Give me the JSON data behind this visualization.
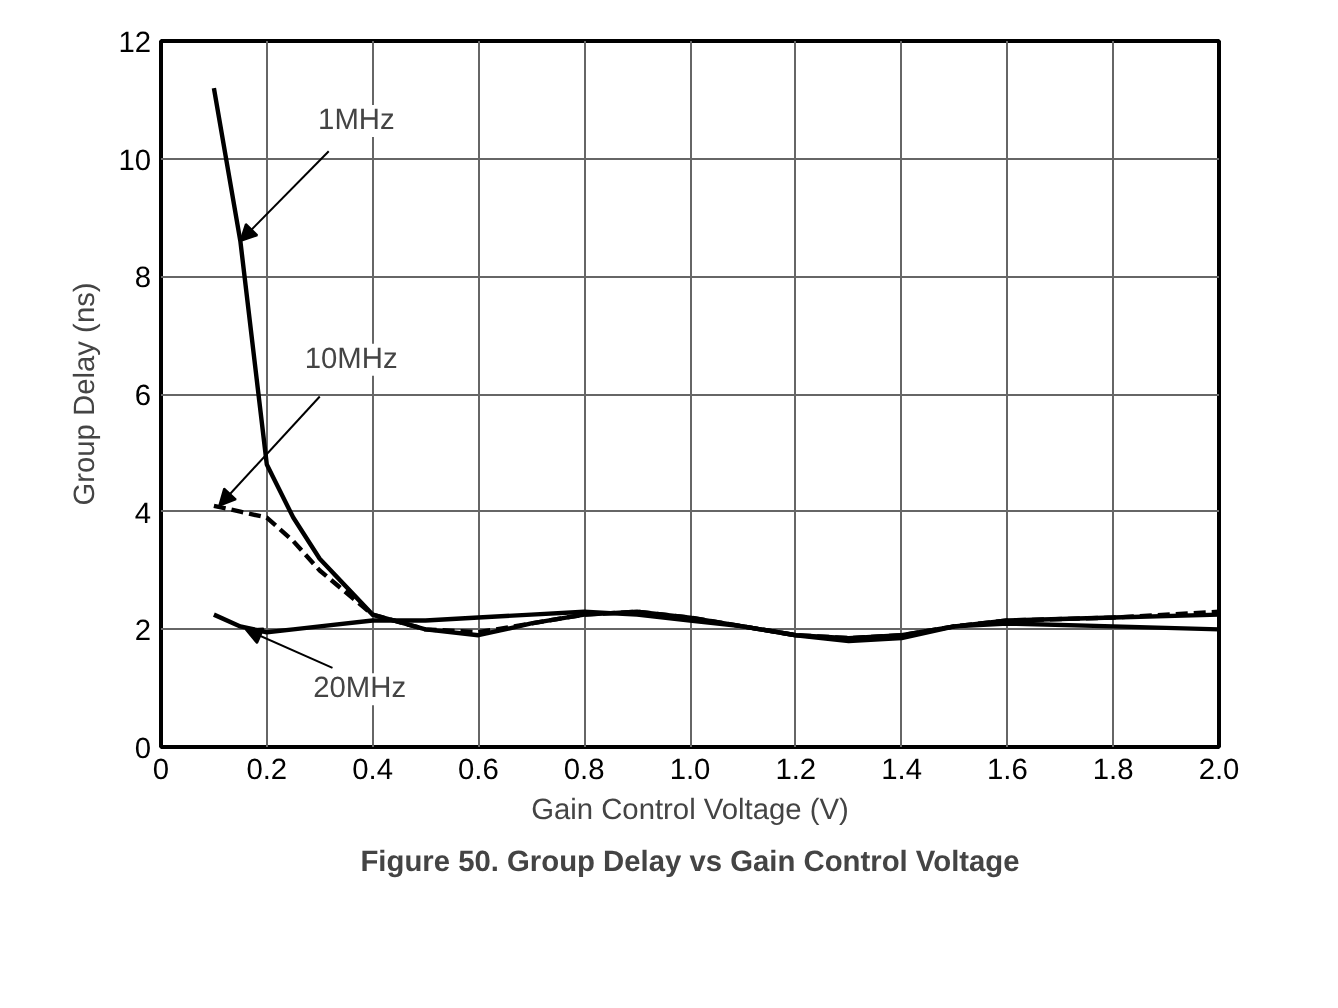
{
  "chart_data": {
    "type": "line",
    "title": "Figure 50. Group Delay vs Gain Control Voltage",
    "xlabel": "Gain Control Voltage (V)",
    "ylabel": "Group Delay (ns)",
    "xlim": [
      0,
      2.0
    ],
    "ylim": [
      0,
      12
    ],
    "xticks": [
      {
        "value": 0,
        "label": "0"
      },
      {
        "value": 0.2,
        "label": "0.2"
      },
      {
        "value": 0.4,
        "label": "0.4"
      },
      {
        "value": 0.6,
        "label": "0.6"
      },
      {
        "value": 0.8,
        "label": "0.8"
      },
      {
        "value": 1.0,
        "label": "1.0"
      },
      {
        "value": 1.2,
        "label": "1.2"
      },
      {
        "value": 1.4,
        "label": "1.4"
      },
      {
        "value": 1.6,
        "label": "1.6"
      },
      {
        "value": 1.8,
        "label": "1.8"
      },
      {
        "value": 2.0,
        "label": "2.0"
      }
    ],
    "yticks": [
      0,
      2,
      4,
      6,
      8,
      10,
      12
    ],
    "grid": true,
    "marker": "none",
    "x": [
      0.1,
      0.15,
      0.2,
      0.25,
      0.3,
      0.4,
      0.5,
      0.6,
      0.7,
      0.8,
      0.9,
      1.0,
      1.1,
      1.2,
      1.3,
      1.4,
      1.5,
      1.6,
      1.8,
      2.0
    ],
    "series": [
      {
        "color": "#000000",
        "line_style": "solid",
        "values": [
          11.2,
          8.6,
          4.8,
          3.9,
          3.2,
          2.25,
          2.0,
          1.9,
          2.1,
          2.25,
          2.3,
          2.2,
          2.05,
          1.9,
          1.8,
          1.85,
          2.05,
          2.1,
          2.05,
          2.0
        ]
      },
      {
        "color": "#000000",
        "line_style": "dashed",
        "values": [
          4.1,
          4.0,
          3.9,
          3.5,
          3.0,
          2.25,
          2.0,
          1.95,
          2.1,
          2.25,
          2.3,
          2.2,
          2.05,
          1.9,
          1.85,
          1.9,
          2.05,
          2.15,
          2.2,
          2.3
        ]
      },
      {
        "color": "#000000",
        "line_style": "solid",
        "values": [
          2.25,
          2.05,
          1.95,
          2.0,
          2.05,
          2.15,
          2.15,
          2.2,
          2.25,
          2.3,
          2.25,
          2.15,
          2.05,
          1.9,
          1.85,
          1.9,
          2.05,
          2.15,
          2.2,
          2.25
        ]
      }
    ],
    "annotations": [
      {
        "text": "1MHz",
        "x": 0.15,
        "y": 8.6
      },
      {
        "text": "10MHz",
        "x": 0.11,
        "y": 4.1
      },
      {
        "text": "20MHz",
        "x": 0.16,
        "y": 2.0
      }
    ]
  }
}
